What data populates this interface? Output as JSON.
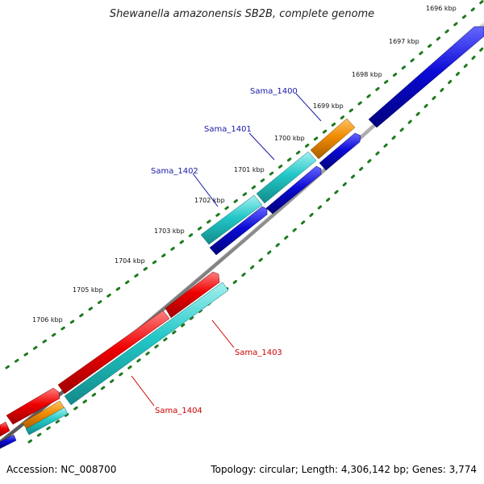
{
  "title": "Shewanella amazonensis SB2B, complete genome",
  "footer": {
    "accession": "Accession: NC_008700",
    "stats": "Topology: circular; Length: 4,306,142 bp; Genes: 3,774"
  },
  "scale_labels": [
    "1696 kbp",
    "1697 kbp",
    "1698 kbp",
    "1699 kbp",
    "1700 kbp",
    "1701 kbp",
    "1702 kbp",
    "1703 kbp",
    "1704 kbp",
    "1705 kbp",
    "1706 kbp"
  ],
  "gene_labels": [
    {
      "text": "Sama_1400",
      "strand": "forward"
    },
    {
      "text": "Sama_1401",
      "strand": "forward"
    },
    {
      "text": "Sama_1402",
      "strand": "forward"
    },
    {
      "text": "Sama_1403",
      "strand": "reverse"
    },
    {
      "text": "Sama_1404",
      "strand": "reverse"
    }
  ],
  "colors": {
    "forward_label": "#1a1aa6",
    "reverse_label": "#cc0000",
    "backbone": "#8c8c8c",
    "tick": "#1e7a1e",
    "red_feature": "#ee0000",
    "cyan_feature": "#22c7c7",
    "blue_feature": "#0a0ad6",
    "orange_feature": "#f08a00"
  }
}
